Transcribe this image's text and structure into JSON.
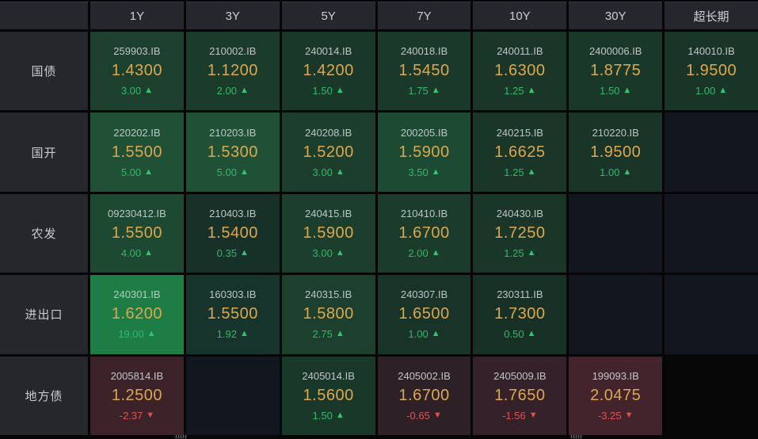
{
  "table": {
    "corner": "",
    "columns": [
      "1Y",
      "3Y",
      "5Y",
      "7Y",
      "10Y",
      "30Y",
      "超长期"
    ],
    "column_slugs": [
      "1y",
      "3y",
      "5y",
      "7y",
      "10y",
      "30y",
      "ultra-long"
    ],
    "rows": [
      {
        "label": "国债",
        "cells": [
          {
            "code": "259903.IB",
            "yield": "1.4300",
            "change": "3.00",
            "direction": "up",
            "bg": "#1d402e"
          },
          {
            "code": "210002.IB",
            "yield": "1.1200",
            "change": "2.00",
            "direction": "up",
            "bg": "#1b3b2b"
          },
          {
            "code": "240014.IB",
            "yield": "1.4200",
            "change": "1.50",
            "direction": "up",
            "bg": "#1a382a"
          },
          {
            "code": "240018.IB",
            "yield": "1.5450",
            "change": "1.75",
            "direction": "up",
            "bg": "#1b392b"
          },
          {
            "code": "240011.IB",
            "yield": "1.6300",
            "change": "1.25",
            "direction": "up",
            "bg": "#1a3629"
          },
          {
            "code": "2400006.IB",
            "yield": "1.8775",
            "change": "1.50",
            "direction": "up",
            "bg": "#1a382a"
          },
          {
            "code": "140010.IB",
            "yield": "1.9500",
            "change": "1.00",
            "direction": "up",
            "bg": "#193528"
          }
        ]
      },
      {
        "label": "国开",
        "cells": [
          {
            "code": "220202.IB",
            "yield": "1.5500",
            "change": "5.00",
            "direction": "up",
            "bg": "#205137"
          },
          {
            "code": "210203.IB",
            "yield": "1.5300",
            "change": "5.00",
            "direction": "up",
            "bg": "#205137"
          },
          {
            "code": "240208.IB",
            "yield": "1.5200",
            "change": "3.00",
            "direction": "up",
            "bg": "#1c3e2d"
          },
          {
            "code": "200205.IB",
            "yield": "1.5900",
            "change": "3.50",
            "direction": "up",
            "bg": "#1d4a32"
          },
          {
            "code": "240215.IB",
            "yield": "1.6625",
            "change": "1.25",
            "direction": "up",
            "bg": "#1a3629"
          },
          {
            "code": "210220.IB",
            "yield": "1.9500",
            "change": "1.00",
            "direction": "up",
            "bg": "#193528"
          },
          null
        ]
      },
      {
        "label": "农发",
        "cells": [
          {
            "code": "09230412.IB",
            "yield": "1.5500",
            "change": "4.00",
            "direction": "up",
            "bg": "#1d4831"
          },
          {
            "code": "210403.IB",
            "yield": "1.5400",
            "change": "0.35",
            "direction": "up",
            "bg": "#173128"
          },
          {
            "code": "240415.IB",
            "yield": "1.5900",
            "change": "3.00",
            "direction": "up",
            "bg": "#1c3e2d"
          },
          {
            "code": "210410.IB",
            "yield": "1.6700",
            "change": "2.00",
            "direction": "up",
            "bg": "#1b3b2b"
          },
          {
            "code": "240430.IB",
            "yield": "1.7250",
            "change": "1.25",
            "direction": "up",
            "bg": "#1a3629"
          },
          null,
          null
        ]
      },
      {
        "label": "进出口",
        "cells": [
          {
            "code": "240301.IB",
            "yield": "1.6200",
            "change": "19.00",
            "direction": "up",
            "bg": "#1e7d45"
          },
          {
            "code": "160303.IB",
            "yield": "1.5500",
            "change": "1.92",
            "direction": "up",
            "bg": "#16342b"
          },
          {
            "code": "240315.IB",
            "yield": "1.5800",
            "change": "2.75",
            "direction": "up",
            "bg": "#1c3f2e"
          },
          {
            "code": "240307.IB",
            "yield": "1.6500",
            "change": "1.00",
            "direction": "up",
            "bg": "#183428"
          },
          {
            "code": "230311.IB",
            "yield": "1.7300",
            "change": "0.50",
            "direction": "up",
            "bg": "#173126"
          },
          null,
          null
        ]
      },
      {
        "label": "地方债",
        "cells": [
          {
            "code": "2005814.IB",
            "yield": "1.2500",
            "change": "-2.37",
            "direction": "down",
            "bg": "#3c2329"
          },
          null,
          {
            "code": "2405014.IB",
            "yield": "1.5600",
            "change": "1.50",
            "direction": "up",
            "bg": "#1a382a"
          },
          {
            "code": "2405002.IB",
            "yield": "1.6700",
            "change": "-0.65",
            "direction": "down",
            "bg": "#2d2127"
          },
          {
            "code": "2405009.IB",
            "yield": "1.7650",
            "change": "-1.56",
            "direction": "down",
            "bg": "#342129"
          },
          {
            "code": "199093.IB",
            "yield": "2.0475",
            "change": "-3.25",
            "direction": "down",
            "bg": "#44242c"
          }
        ]
      }
    ]
  },
  "glyphs": {
    "up": "▲",
    "down": "▼"
  },
  "colors": {
    "up_text": "#2dbb68",
    "down_text": "#e05252",
    "yield_text": "#dda74d",
    "code_text": "#c0c4c8",
    "header_bg": "#26272c",
    "empty_cell_bg": "#12161e",
    "gridline": "#060607"
  }
}
